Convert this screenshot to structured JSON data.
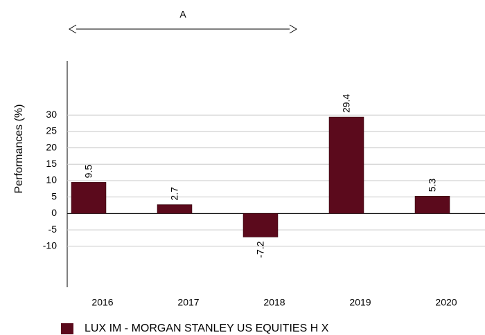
{
  "chart_data": {
    "type": "bar",
    "annotation": "A",
    "y_label": "Performances (%)",
    "categories": [
      "2016",
      "2017",
      "2018",
      "2019",
      "2020"
    ],
    "series": [
      {
        "name": "LUX IM - MORGAN STANLEY US EQUITIES H X",
        "color": "#5b0a1c",
        "values": [
          9.5,
          2.7,
          -7.2,
          29.4,
          5.3
        ]
      }
    ],
    "ylim": [
      -22.5,
      46.5
    ],
    "yticks": [
      -10,
      -5,
      0,
      5,
      10,
      15,
      20,
      25,
      30
    ],
    "grid": true,
    "legend": "bottom"
  }
}
